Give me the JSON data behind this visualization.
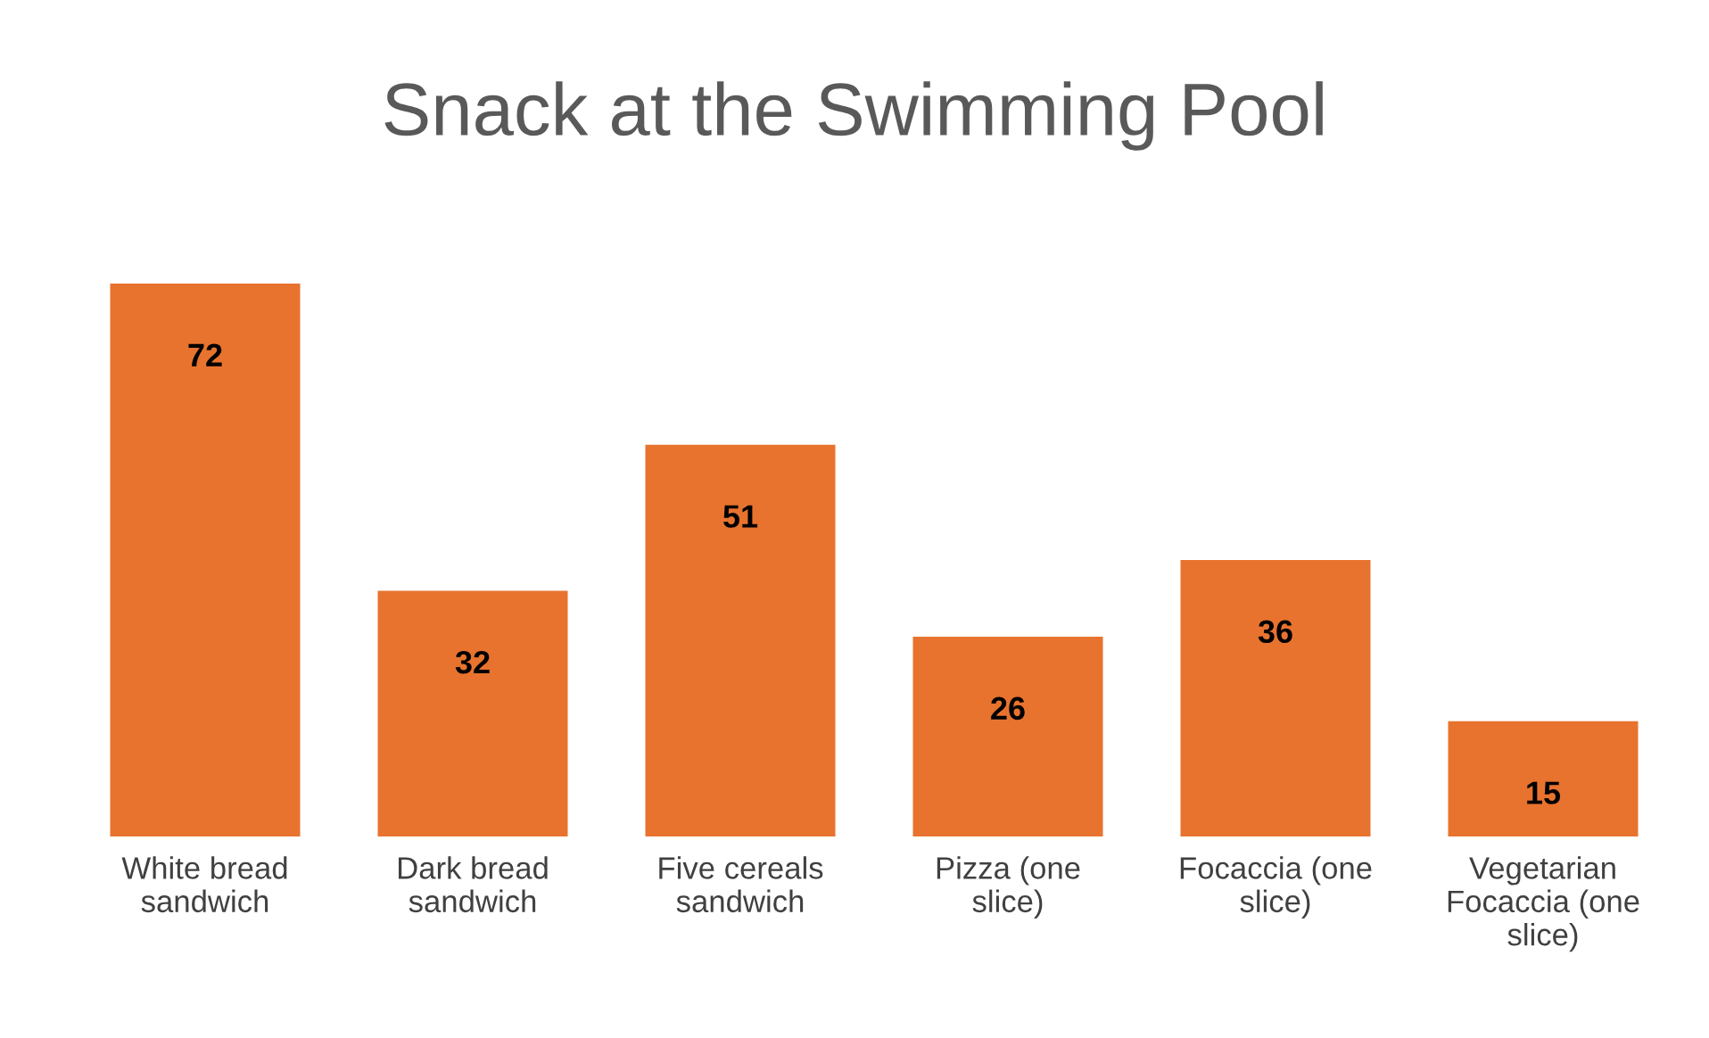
{
  "chart_data": {
    "type": "bar",
    "title": "Snack at the Swimming Pool",
    "categories": [
      "White bread sandwich",
      "Dark bread sandwich",
      "Five cereals sandwich",
      "Pizza (one slice)",
      "Focaccia (one slice)",
      "Vegetarian Focaccia (one slice)"
    ],
    "values": [
      72,
      32,
      51,
      26,
      36,
      15
    ],
    "color": "#e8732e",
    "data_labels": true,
    "grid": false,
    "legend": false,
    "tick_labels": "x"
  }
}
